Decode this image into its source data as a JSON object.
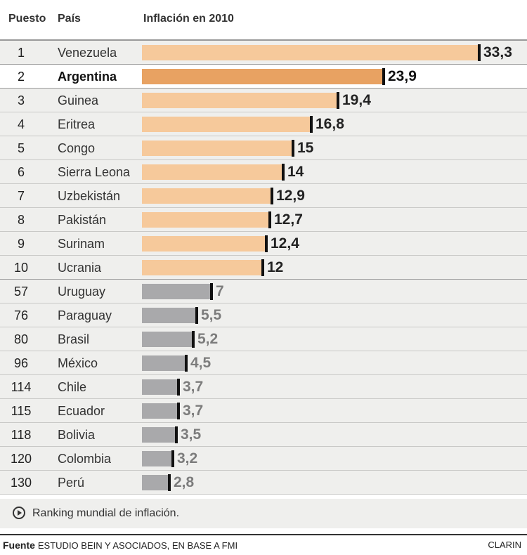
{
  "headers": {
    "rank": "Puesto",
    "country": "País",
    "value": "Inflación en 2010"
  },
  "colors": {
    "top10": "#f6c99b",
    "highlight": "#e8a262",
    "others": "#a9a9ab"
  },
  "chart_data": {
    "type": "bar",
    "title": "Inflación en 2010",
    "orientation": "horizontal",
    "categories": [
      "Venezuela",
      "Argentina",
      "Guinea",
      "Eritrea",
      "Congo",
      "Sierra Leona",
      "Uzbekistán",
      "Pakistán",
      "Surinam",
      "Ucrania",
      "Uruguay",
      "Paraguay",
      "Brasil",
      "México",
      "Chile",
      "Ecuador",
      "Bolivia",
      "Colombia",
      "Perú"
    ],
    "ranks": [
      "1",
      "2",
      "3",
      "4",
      "5",
      "6",
      "7",
      "8",
      "9",
      "10",
      "57",
      "76",
      "80",
      "96",
      "114",
      "115",
      "118",
      "120",
      "130"
    ],
    "values": [
      33.3,
      23.9,
      19.4,
      16.8,
      15,
      14,
      12.9,
      12.7,
      12.4,
      12,
      7,
      5.5,
      5.2,
      4.5,
      3.7,
      3.7,
      3.5,
      3.2,
      2.8
    ],
    "value_labels": [
      "33,3",
      "23,9",
      "19,4",
      "16,8",
      "15",
      "14",
      "12,9",
      "12,7",
      "12,4",
      "12",
      "7",
      "5,5",
      "5,2",
      "4,5",
      "3,7",
      "3,7",
      "3,5",
      "3,2",
      "2,8"
    ],
    "highlighted": "Argentina",
    "xlim": [
      0,
      33.3
    ],
    "grid": false
  },
  "note": "Ranking mundial de inflación.",
  "footer": {
    "source_label": "Fuente",
    "source_text": "ESTUDIO BEIN Y ASOCIADOS, EN BASE A FMI",
    "brand": "CLARIN"
  }
}
